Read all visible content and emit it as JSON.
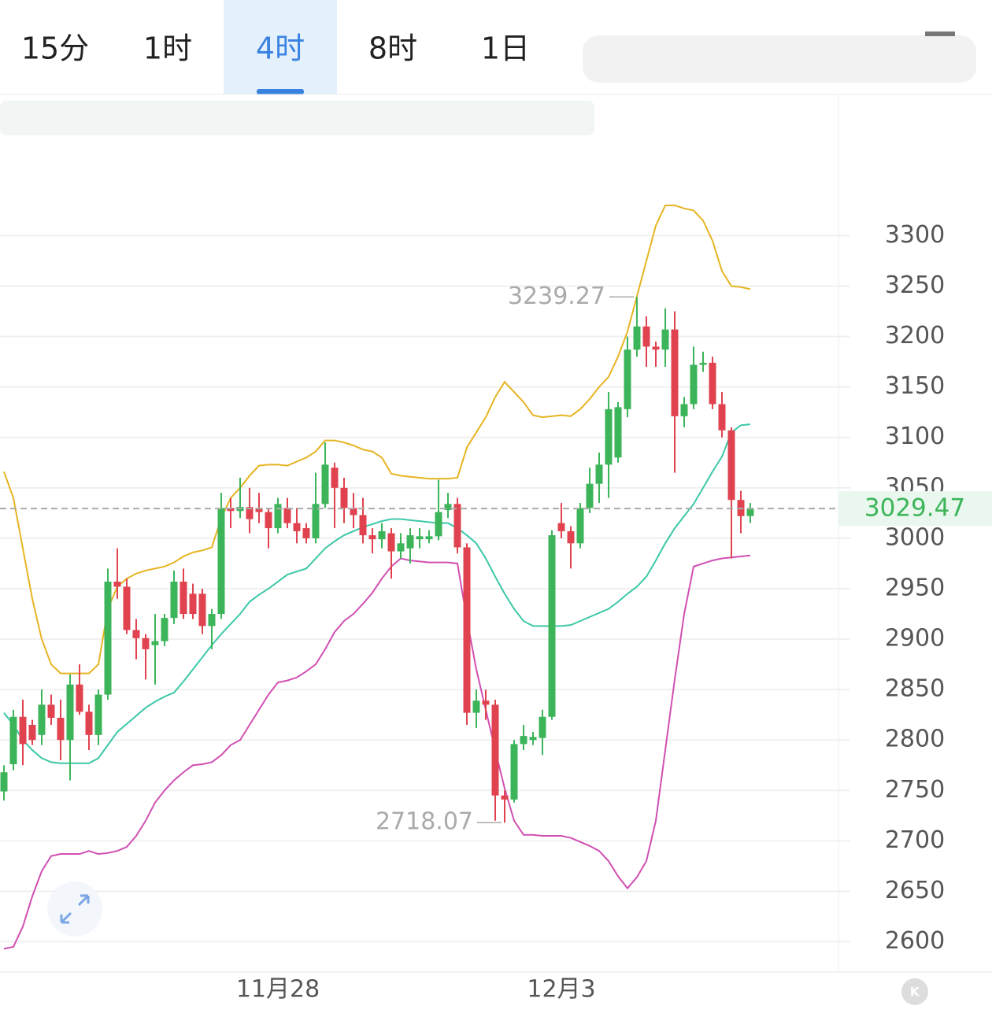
{
  "tabs": [
    "15分",
    "1时",
    "4时",
    "8时",
    "1日"
  ],
  "active_tab": 2,
  "chart_data": {
    "type": "candlestick",
    "categories": [
      null,
      null,
      null,
      null,
      null,
      null,
      null,
      null,
      null,
      null,
      null,
      null,
      null,
      null,
      null,
      null,
      null,
      null,
      null,
      null,
      null,
      null,
      null,
      null,
      null,
      null,
      null,
      null,
      null,
      "11月28",
      null,
      null,
      null,
      null,
      null,
      null,
      null,
      null,
      null,
      null,
      null,
      null,
      null,
      null,
      null,
      null,
      null,
      null,
      null,
      null,
      null,
      null,
      null,
      null,
      null,
      null,
      null,
      null,
      null,
      "12月3",
      null,
      null,
      null,
      null,
      null,
      null,
      null,
      null,
      null,
      null,
      null,
      null,
      null,
      null,
      null,
      null,
      null,
      null,
      null,
      null
    ],
    "open": [
      2749,
      2776,
      2823,
      2815,
      2805,
      2835,
      2822,
      2800,
      2855,
      2828,
      2805,
      2845,
      2957,
      2952,
      2909,
      2901,
      2894,
      2898,
      2921,
      2957,
      2945,
      2945,
      2913,
      2925,
      3030,
      3027,
      3031,
      3030,
      3026,
      3010,
      3030,
      3015,
      3010,
      3000,
      3034,
      3070,
      3050,
      3030,
      3023,
      3003,
      2999,
      3005,
      2987,
      2990,
      2999,
      2999,
      3002,
      3028,
      3034,
      2991,
      2827,
      2839,
      2835,
      2745,
      2741,
      2796,
      2800,
      2802,
      2823,
      3015,
      3007,
      2995,
      3030,
      3054,
      3073,
      3080,
      3128,
      3187,
      3210,
      3190,
      3187,
      3207,
      3121,
      3133,
      3172,
      3174,
      3133,
      3107,
      3038,
      3022
    ],
    "high": [
      2775,
      2830,
      2840,
      2820,
      2850,
      2845,
      2840,
      2865,
      2875,
      2835,
      2850,
      2970,
      2990,
      2960,
      2920,
      2905,
      2925,
      2925,
      2968,
      2970,
      2955,
      2950,
      2930,
      3045,
      3040,
      3060,
      3050,
      3045,
      3030,
      3040,
      3040,
      3030,
      3015,
      3065,
      3095,
      3075,
      3060,
      3045,
      3040,
      3010,
      3015,
      3010,
      3005,
      3010,
      3010,
      3008,
      3058,
      3045,
      3040,
      2995,
      2850,
      2850,
      2840,
      2750,
      2800,
      2815,
      2808,
      2830,
      3008,
      3035,
      3012,
      3035,
      3070,
      3085,
      3145,
      3135,
      3200,
      3239.27,
      3220,
      3195,
      3228,
      3225,
      3140,
      3190,
      3185,
      3180,
      3145,
      3110,
      3047,
      3035
    ],
    "low": [
      2740,
      2770,
      2775,
      2795,
      2795,
      2815,
      2780,
      2760,
      2825,
      2790,
      2795,
      2840,
      2940,
      2905,
      2880,
      2860,
      2855,
      2893,
      2915,
      2920,
      2920,
      2905,
      2890,
      2920,
      3010,
      3020,
      3005,
      3015,
      2990,
      3005,
      3010,
      2995,
      2995,
      2995,
      3030,
      3010,
      3015,
      3010,
      2995,
      2985,
      2990,
      2960,
      2980,
      2975,
      2990,
      2995,
      2998,
      3020,
      2985,
      2815,
      2812,
      2820,
      2720,
      2718.07,
      2738,
      2790,
      2795,
      2785,
      2820,
      3000,
      2970,
      2990,
      3025,
      3035,
      3040,
      3075,
      3120,
      3180,
      3170,
      3170,
      3170,
      3065,
      3110,
      3128,
      3165,
      3128,
      3100,
      2980,
      3005,
      3015
    ],
    "close": [
      2768,
      2823,
      2796,
      2800,
      2835,
      2822,
      2800,
      2855,
      2828,
      2805,
      2845,
      2957,
      2952,
      2909,
      2901,
      2890,
      2898,
      2921,
      2957,
      2925,
      2925,
      2913,
      2925,
      3030,
      3027,
      3031,
      3019,
      3026,
      3010,
      3034,
      3015,
      3007,
      3000,
      3034,
      3073,
      3050,
      3030,
      3023,
      3003,
      2999,
      3007,
      2987,
      2995,
      3003,
      3002,
      3002,
      3026,
      3034,
      2991,
      2827,
      2839,
      2835,
      2745,
      2741,
      2796,
      2804,
      2803,
      2823,
      3003,
      3007,
      2995,
      3030,
      3054,
      3073,
      3128,
      3130,
      3187,
      3210,
      3190,
      3187,
      3207,
      3121,
      3133,
      3172,
      3174,
      3133,
      3107,
      3038,
      3022,
      3029.47
    ],
    "up_color": "#3cb55a",
    "down_color": "#e0434f",
    "series": [
      {
        "color": "#e6b422",
        "values": [
          3066,
          3040,
          2990,
          2940,
          2900,
          2875,
          2866,
          2866,
          2866,
          2866,
          2875,
          2930,
          2952,
          2960,
          2965,
          2968,
          2970,
          2972,
          2976,
          2982,
          2986,
          2988,
          2991,
          3020,
          3040,
          3050,
          3062,
          3072,
          3073,
          3073,
          3072,
          3076,
          3080,
          3086,
          3097,
          3097,
          3095,
          3092,
          3088,
          3086,
          3080,
          3064,
          3062,
          3061,
          3060,
          3059,
          3059,
          3059,
          3060,
          3090,
          3105,
          3120,
          3140,
          3155,
          3145,
          3135,
          3122,
          3120,
          3121,
          3122,
          3121,
          3128,
          3138,
          3150,
          3160,
          3180,
          3205,
          3240,
          3275,
          3310,
          3330,
          3330,
          3327,
          3325,
          3315,
          3295,
          3265,
          3250,
          3249,
          3247
        ]
      },
      {
        "color": "#3cc8a8",
        "values": [
          2827,
          2815,
          2800,
          2790,
          2782,
          2778,
          2777,
          2777,
          2777,
          2777,
          2782,
          2795,
          2808,
          2816,
          2824,
          2832,
          2838,
          2843,
          2847,
          2858,
          2870,
          2882,
          2894,
          2905,
          2915,
          2925,
          2937,
          2944,
          2950,
          2957,
          2964,
          2967,
          2970,
          2980,
          2990,
          2997,
          3003,
          3007,
          3011,
          3014,
          3017,
          3019,
          3019,
          3018,
          3017,
          3016,
          3015,
          3015,
          3010,
          3003,
          2995,
          2980,
          2962,
          2945,
          2930,
          2918,
          2913,
          2913,
          2913,
          2913,
          2914,
          2918,
          2922,
          2926,
          2930,
          2937,
          2945,
          2952,
          2962,
          2978,
          2995,
          3010,
          3022,
          3034,
          3050,
          3066,
          3081,
          3105,
          3112,
          3113
        ]
      },
      {
        "color": "#d14fb2",
        "values": [
          2593,
          2595,
          2615,
          2645,
          2670,
          2685,
          2687,
          2687,
          2687,
          2690,
          2687,
          2688,
          2690,
          2694,
          2705,
          2720,
          2738,
          2750,
          2760,
          2768,
          2775,
          2776,
          2778,
          2785,
          2795,
          2800,
          2815,
          2830,
          2845,
          2857,
          2859,
          2862,
          2868,
          2875,
          2890,
          2907,
          2918,
          2925,
          2935,
          2946,
          2960,
          2972,
          2980,
          2978,
          2977,
          2976,
          2976,
          2976,
          2975,
          2920,
          2870,
          2830,
          2790,
          2752,
          2720,
          2706,
          2706,
          2705,
          2705,
          2705,
          2703,
          2699,
          2695,
          2690,
          2680,
          2665,
          2653,
          2664,
          2680,
          2720,
          2790,
          2860,
          2925,
          2972,
          2975,
          2978,
          2980,
          2981,
          2982,
          2983
        ]
      }
    ],
    "ylim": [
      2570,
      3440
    ],
    "yticks": [
      2600,
      2650,
      2700,
      2750,
      2800,
      2850,
      2900,
      2950,
      3000,
      3050,
      3100,
      3150,
      3200,
      3250,
      3300
    ],
    "grid": true
  }
}
